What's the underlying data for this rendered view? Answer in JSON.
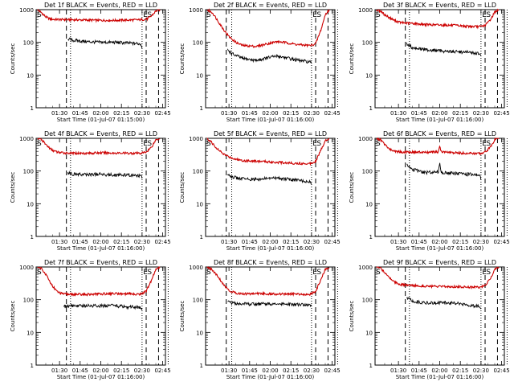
{
  "figure": {
    "background": "#ffffff",
    "axis_color": "#000000",
    "events_color": "#000000",
    "lld_color": "#cc0000"
  },
  "chart_data": [
    {
      "type": "line",
      "title": "Det 1f BLACK = Events, RED = LLD",
      "xlabel": "Start Time (01-Jul-07 01:15:00)",
      "ylabel": "Counts/sec",
      "yscale": "log",
      "ylim": [
        1,
        1000
      ],
      "yticks": [
        "1",
        "10",
        "100",
        "1000"
      ],
      "xticks": [
        "01:30",
        "01:45",
        "02:00",
        "02:15",
        "02:30",
        "02:45"
      ],
      "xrange_min": [
        13,
        107
      ],
      "markers": [
        "S",
        "E",
        "S"
      ],
      "dashed_min": [
        35,
        93,
        102
      ],
      "dotted_min": [
        38,
        90,
        109
      ],
      "series": [
        {
          "color": "#cc0000",
          "x": [
            14,
            17,
            20,
            23,
            26,
            30,
            40,
            50,
            60,
            70,
            80,
            89,
            94,
            97,
            100,
            103
          ],
          "values": [
            1000,
            800,
            600,
            520,
            500,
            500,
            490,
            480,
            470,
            470,
            480,
            490,
            520,
            650,
            900,
            1000
          ]
        },
        {
          "color": "#000000",
          "x": [
            36,
            40,
            50,
            60,
            70,
            80,
            89,
            90
          ],
          "values": [
            130,
            115,
            105,
            100,
            100,
            95,
            90,
            70
          ]
        }
      ]
    },
    {
      "type": "line",
      "title": "Det 2f BLACK = Events, RED = LLD",
      "xlabel": "Start Time (01-Jul-07 01:16:00)",
      "ylabel": "Counts/sec",
      "yscale": "log",
      "ylim": [
        1,
        1000
      ],
      "yticks": [
        "1",
        "10",
        "100",
        "1000"
      ],
      "xticks": [
        "01:30",
        "01:45",
        "02:00",
        "02:15",
        "02:30",
        "02:45"
      ],
      "xrange_min": [
        13,
        107
      ],
      "markers": [
        "S",
        "E",
        "S"
      ],
      "dashed_min": [
        28,
        93,
        102
      ],
      "dotted_min": [
        32,
        90,
        109
      ],
      "series": [
        {
          "color": "#cc0000",
          "x": [
            14,
            18,
            22,
            26,
            30,
            35,
            40,
            50,
            60,
            65,
            70,
            80,
            89,
            93,
            97,
            100,
            103
          ],
          "values": [
            1000,
            800,
            450,
            250,
            150,
            100,
            80,
            75,
            95,
            105,
            100,
            85,
            80,
            90,
            250,
            700,
            1000
          ]
        },
        {
          "color": "#000000",
          "x": [
            29,
            32,
            36,
            40,
            50,
            60,
            65,
            70,
            80,
            89,
            90
          ],
          "values": [
            60,
            45,
            38,
            32,
            28,
            35,
            38,
            35,
            28,
            25,
            22
          ]
        }
      ]
    },
    {
      "type": "line",
      "title": "Det 3f BLACK = Events, RED = LLD",
      "xlabel": "Start Time (01-Jul-07 01:16:00)",
      "ylabel": "Counts/sec",
      "yscale": "log",
      "ylim": [
        1,
        1000
      ],
      "yticks": [
        "1",
        "10",
        "100",
        "1000"
      ],
      "xticks": [
        "01:30",
        "01:45",
        "02:00",
        "02:15",
        "02:30",
        "02:45"
      ],
      "xrange_min": [
        13,
        107
      ],
      "markers": [
        "S",
        "E",
        "S"
      ],
      "dashed_min": [
        35,
        93,
        102
      ],
      "dotted_min": [
        38,
        90,
        109
      ],
      "series": [
        {
          "color": "#cc0000",
          "x": [
            14,
            17,
            20,
            24,
            28,
            32,
            40,
            50,
            60,
            70,
            80,
            89,
            93,
            97,
            100,
            103
          ],
          "values": [
            1000,
            900,
            700,
            550,
            450,
            400,
            380,
            350,
            340,
            330,
            310,
            300,
            330,
            500,
            850,
            1000
          ]
        },
        {
          "color": "#000000",
          "x": [
            36,
            40,
            50,
            60,
            70,
            80,
            89,
            90
          ],
          "values": [
            90,
            70,
            60,
            55,
            52,
            50,
            45,
            35
          ]
        }
      ]
    },
    {
      "type": "line",
      "title": "Det 4f BLACK = Events, RED = LLD",
      "xlabel": "Start Time (01-Jul-07 01:16:00)",
      "ylabel": "Counts/sec",
      "yscale": "log",
      "ylim": [
        1,
        1000
      ],
      "yticks": [
        "1",
        "10",
        "100",
        "1000"
      ],
      "xticks": [
        "01:30",
        "01:45",
        "02:00",
        "02:15",
        "02:30",
        "02:45"
      ],
      "xrange_min": [
        13,
        107
      ],
      "markers": [
        "S",
        "E",
        "S"
      ],
      "dashed_min": [
        35,
        93,
        102
      ],
      "dotted_min": [
        38,
        90,
        109
      ],
      "series": [
        {
          "color": "#cc0000",
          "x": [
            14,
            17,
            20,
            24,
            28,
            32,
            40,
            50,
            60,
            70,
            80,
            89,
            93,
            97,
            100,
            103
          ],
          "values": [
            1000,
            900,
            650,
            450,
            380,
            360,
            350,
            350,
            360,
            355,
            350,
            350,
            380,
            550,
            900,
            1000
          ]
        },
        {
          "color": "#000000",
          "x": [
            36,
            40,
            50,
            60,
            70,
            80,
            89,
            90
          ],
          "values": [
            90,
            80,
            78,
            80,
            75,
            75,
            70,
            60
          ]
        }
      ]
    },
    {
      "type": "line",
      "title": "Det 5f BLACK = Events, RED = LLD",
      "xlabel": "Start Time (01-Jul-07 01:16:00)",
      "ylabel": "Counts/sec",
      "yscale": "log",
      "ylim": [
        1,
        1000
      ],
      "yticks": [
        "1",
        "10",
        "100",
        "1000"
      ],
      "xticks": [
        "01:30",
        "01:45",
        "02:00",
        "02:15",
        "02:30",
        "02:45"
      ],
      "xrange_min": [
        13,
        107
      ],
      "markers": [
        "S",
        "E",
        "S"
      ],
      "dashed_min": [
        28,
        93,
        102
      ],
      "dotted_min": [
        32,
        90,
        109
      ],
      "series": [
        {
          "color": "#cc0000",
          "x": [
            14,
            18,
            22,
            26,
            30,
            35,
            40,
            50,
            60,
            70,
            80,
            89,
            93,
            97,
            100,
            103
          ],
          "values": [
            1000,
            700,
            450,
            330,
            270,
            230,
            210,
            200,
            190,
            180,
            170,
            170,
            200,
            450,
            850,
            1000
          ]
        },
        {
          "color": "#000000",
          "x": [
            29,
            33,
            37,
            40,
            50,
            60,
            65,
            70,
            80,
            89,
            90
          ],
          "values": [
            80,
            65,
            60,
            58,
            55,
            60,
            62,
            58,
            52,
            48,
            42
          ]
        }
      ]
    },
    {
      "type": "line",
      "title": "Det 6f BLACK = Events, RED = LLD",
      "xlabel": "Start Time (01-Jul-07 01:16:00)",
      "ylabel": "Counts/sec",
      "yscale": "log",
      "ylim": [
        1,
        1000
      ],
      "yticks": [
        "1",
        "10",
        "100",
        "1000"
      ],
      "xticks": [
        "01:30",
        "01:45",
        "02:00",
        "02:15",
        "02:30",
        "02:45"
      ],
      "xrange_min": [
        13,
        107
      ],
      "markers": [
        "S",
        "E",
        "S"
      ],
      "dashed_min": [
        35,
        93,
        102
      ],
      "dotted_min": [
        38,
        90,
        109
      ],
      "series": [
        {
          "color": "#cc0000",
          "x": [
            14,
            17,
            20,
            24,
            28,
            32,
            40,
            50,
            59,
            60,
            61,
            70,
            80,
            89,
            93,
            97,
            100,
            103
          ],
          "values": [
            1000,
            900,
            650,
            450,
            400,
            380,
            380,
            370,
            380,
            580,
            390,
            360,
            350,
            340,
            380,
            550,
            900,
            1000
          ]
        },
        {
          "color": "#000000",
          "x": [
            36,
            40,
            50,
            59,
            60,
            61,
            70,
            80,
            89,
            90
          ],
          "values": [
            150,
            110,
            90,
            95,
            180,
            90,
            85,
            80,
            75,
            55
          ]
        }
      ]
    },
    {
      "type": "line",
      "title": "Det 7f BLACK = Events, RED = LLD",
      "xlabel": "Start Time (01-Jul-07 01:16:00)",
      "ylabel": "Counts/sec",
      "yscale": "log",
      "ylim": [
        1,
        1000
      ],
      "yticks": [
        "1",
        "10",
        "100",
        "1000"
      ],
      "xticks": [
        "01:30",
        "01:45",
        "02:00",
        "02:15",
        "02:30",
        "02:45"
      ],
      "xrange_min": [
        13,
        107
      ],
      "markers": [
        "S",
        "E",
        "S"
      ],
      "dashed_min": [
        35,
        93,
        102
      ],
      "dotted_min": [
        38,
        90,
        109
      ],
      "series": [
        {
          "color": "#cc0000",
          "x": [
            14,
            17,
            20,
            24,
            28,
            32,
            40,
            50,
            60,
            70,
            80,
            89,
            93,
            97,
            100,
            103
          ],
          "values": [
            1000,
            900,
            600,
            300,
            180,
            150,
            145,
            145,
            150,
            155,
            150,
            148,
            180,
            400,
            850,
            1000
          ]
        },
        {
          "color": "#000000",
          "x": [
            33,
            36,
            40,
            50,
            60,
            70,
            80,
            89,
            90
          ],
          "values": [
            60,
            65,
            65,
            65,
            65,
            65,
            60,
            58,
            50
          ]
        }
      ]
    },
    {
      "type": "line",
      "title": "Det 8f BLACK = Events, RED = LLD",
      "xlabel": "Start Time (01-Jul-07 01:16:00)",
      "ylabel": "Counts/sec",
      "yscale": "log",
      "ylim": [
        1,
        1000
      ],
      "yticks": [
        "1",
        "10",
        "100",
        "1000"
      ],
      "xticks": [
        "01:30",
        "01:45",
        "02:00",
        "02:15",
        "02:30",
        "02:45"
      ],
      "xrange_min": [
        13,
        107
      ],
      "markers": [
        "S",
        "E",
        "S"
      ],
      "dashed_min": [
        28,
        93,
        102
      ],
      "dotted_min": [
        32,
        90,
        109
      ],
      "series": [
        {
          "color": "#cc0000",
          "x": [
            14,
            18,
            22,
            26,
            30,
            35,
            40,
            50,
            60,
            70,
            80,
            89,
            93,
            97,
            100,
            103
          ],
          "values": [
            1000,
            800,
            500,
            300,
            190,
            160,
            150,
            155,
            150,
            148,
            150,
            145,
            180,
            420,
            850,
            1000
          ]
        },
        {
          "color": "#000000",
          "x": [
            29,
            32,
            36,
            40,
            50,
            60,
            70,
            80,
            89,
            90
          ],
          "values": [
            90,
            80,
            75,
            75,
            72,
            75,
            72,
            70,
            68,
            62
          ]
        }
      ]
    },
    {
      "type": "line",
      "title": "Det 9f BLACK = Events, RED = LLD",
      "xlabel": "Start Time (01-Jul-07 01:16:00)",
      "ylabel": "Counts/sec",
      "yscale": "log",
      "ylim": [
        1,
        1000
      ],
      "yticks": [
        "1",
        "10",
        "100",
        "1000"
      ],
      "xticks": [
        "01:30",
        "01:45",
        "02:00",
        "02:15",
        "02:30",
        "02:45"
      ],
      "xrange_min": [
        13,
        107
      ],
      "markers": [
        "S",
        "E",
        "S"
      ],
      "dashed_min": [
        35,
        93,
        102
      ],
      "dotted_min": [
        38,
        90,
        109
      ],
      "series": [
        {
          "color": "#cc0000",
          "x": [
            14,
            17,
            20,
            24,
            28,
            32,
            40,
            50,
            60,
            70,
            80,
            89,
            93,
            97,
            100,
            103
          ],
          "values": [
            1000,
            900,
            700,
            450,
            330,
            290,
            270,
            260,
            250,
            250,
            245,
            240,
            270,
            450,
            850,
            1000
          ]
        },
        {
          "color": "#000000",
          "x": [
            36,
            40,
            50,
            60,
            70,
            80,
            89,
            90
          ],
          "values": [
            120,
            90,
            80,
            80,
            80,
            70,
            62,
            55
          ]
        }
      ]
    }
  ]
}
